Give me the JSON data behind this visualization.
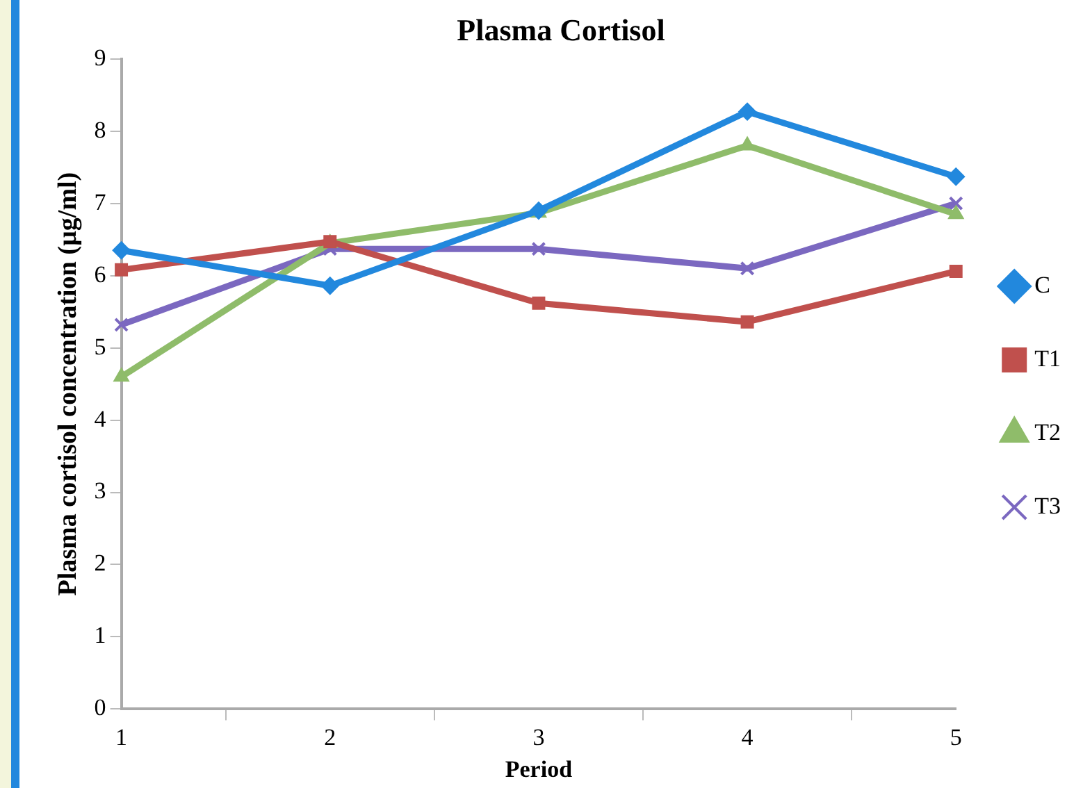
{
  "chart_data": {
    "type": "line",
    "title": "Plasma Cortisol",
    "xlabel": "Period",
    "ylabel": "Plasma cortisol concentration (µg/ml)",
    "categories": [
      "1",
      "2",
      "3",
      "4",
      "5"
    ],
    "series": [
      {
        "name": "C",
        "color": "#2288dd",
        "marker": "diamond",
        "values": [
          6.35,
          5.86,
          6.9,
          8.27,
          7.37
        ]
      },
      {
        "name": "T1",
        "color": "#c0504d",
        "marker": "square",
        "values": [
          6.08,
          6.47,
          5.62,
          5.36,
          6.06
        ]
      },
      {
        "name": "T2",
        "color": "#8fbc6a",
        "marker": "triangle",
        "values": [
          4.6,
          6.45,
          6.87,
          7.8,
          6.85
        ]
      },
      {
        "name": "T3",
        "color": "#7b68c0",
        "marker": "cross",
        "values": [
          5.32,
          6.37,
          6.37,
          6.1,
          7.0
        ]
      }
    ],
    "ylim": [
      0,
      9
    ],
    "yticks": [
      0,
      1,
      2,
      3,
      4,
      5,
      6,
      7,
      8,
      9
    ],
    "grid": false,
    "legend": "right",
    "line_style": "solid"
  }
}
